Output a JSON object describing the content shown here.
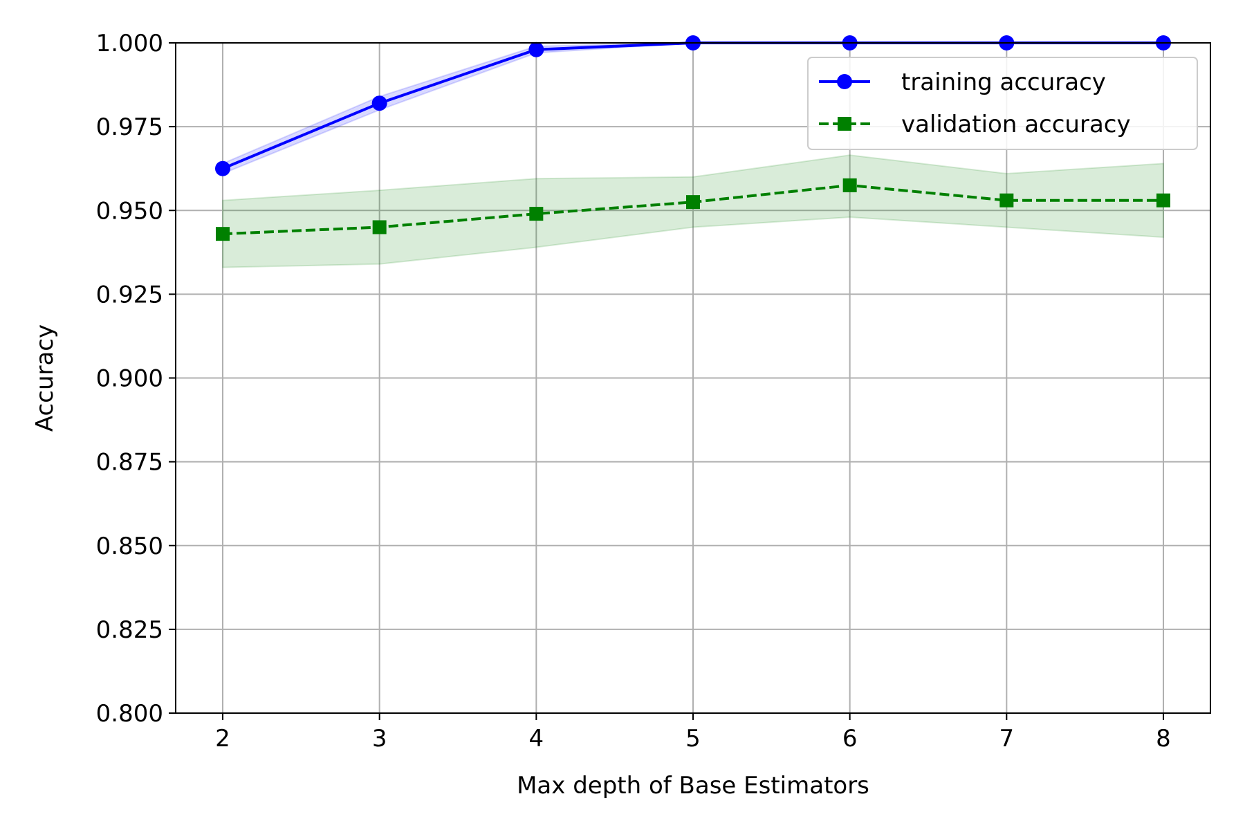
{
  "chart_data": {
    "type": "line",
    "title": "",
    "xlabel": "Max depth of Base Estimators",
    "ylabel": "Accuracy",
    "x": [
      2,
      3,
      4,
      5,
      6,
      7,
      8
    ],
    "xlim": [
      1.7,
      8.3
    ],
    "ylim": [
      0.8,
      1.0
    ],
    "xticks": [
      "2",
      "3",
      "4",
      "5",
      "6",
      "7",
      "8"
    ],
    "yticks": [
      "0.800",
      "0.825",
      "0.850",
      "0.875",
      "0.900",
      "0.925",
      "0.950",
      "0.975",
      "1.000"
    ],
    "grid": true,
    "legend_position": "top-right",
    "series": [
      {
        "name": "training accuracy",
        "color": "#0000ff",
        "line_style": "solid",
        "marker": "circle",
        "values": [
          0.9625,
          0.982,
          0.998,
          1.0,
          1.0,
          1.0,
          1.0
        ],
        "band_upper": [
          0.964,
          0.984,
          0.999,
          1.0,
          1.0,
          1.0,
          1.0
        ],
        "band_lower": [
          0.961,
          0.98,
          0.997,
          1.0,
          1.0,
          1.0,
          1.0
        ]
      },
      {
        "name": "validation accuracy",
        "color": "#008000",
        "line_style": "dashed",
        "marker": "square",
        "values": [
          0.943,
          0.945,
          0.949,
          0.9525,
          0.9575,
          0.953,
          0.953
        ],
        "band_upper": [
          0.953,
          0.956,
          0.9595,
          0.96,
          0.9665,
          0.961,
          0.964
        ],
        "band_lower": [
          0.933,
          0.934,
          0.939,
          0.945,
          0.948,
          0.945,
          0.942
        ]
      }
    ]
  }
}
